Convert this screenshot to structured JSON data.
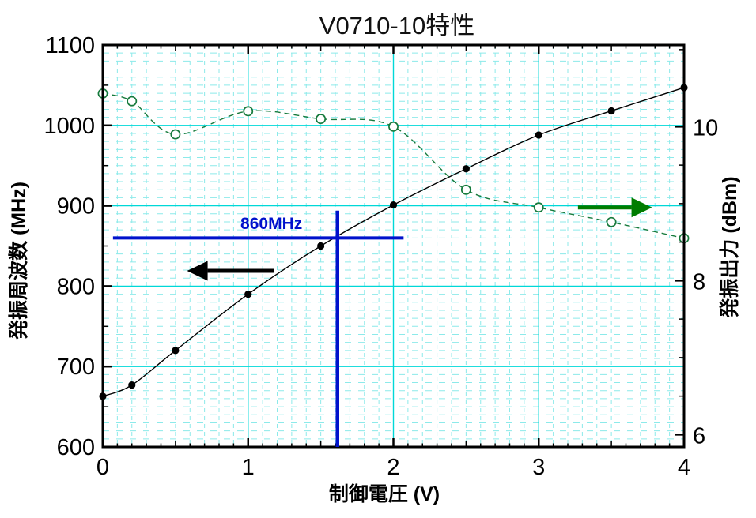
{
  "title": "V0710-10特性",
  "chart_data": {
    "type": "line",
    "title": "V0710-10特性",
    "xlabel": "制御電圧 (V)",
    "xlim": [
      0,
      4
    ],
    "x": [
      0,
      0.2,
      0.5,
      1.0,
      1.5,
      2.0,
      2.5,
      3.0,
      3.5,
      4.0
    ],
    "x_major_ticks": [
      0,
      1,
      2,
      3,
      4
    ],
    "left_axis": {
      "label": "発振周波数 (MHz)",
      "ylim": [
        600,
        1100
      ],
      "ticks": [
        600,
        700,
        800,
        900,
        1000,
        1100
      ],
      "minor_step": 50,
      "tick_color": "#000000"
    },
    "right_axis": {
      "label": "発振出力 (dBm)",
      "ylim": [
        5.84,
        11.06
      ],
      "ticks": [
        6,
        8,
        10
      ],
      "minor_step": 0.5,
      "tick_color": "#0e8c0e"
    },
    "grid": {
      "major_color": "#00d8d8",
      "minor_color": "#8ceaea",
      "x_minor_step": 0.1,
      "y_minor_step_mhz": 10
    },
    "series": [
      {
        "name": "発振周波数",
        "axis": "left",
        "marker": "filled-circle",
        "line_style": "solid",
        "color": "#000000",
        "values": [
          663,
          677,
          720,
          790,
          850,
          901,
          946,
          988,
          1018,
          1047
        ]
      },
      {
        "name": "発振出力",
        "axis": "right",
        "marker": "open-circle",
        "line_style": "dashed",
        "color": "#167a3c",
        "values": [
          10.43,
          10.33,
          9.9,
          10.2,
          10.1,
          10.0,
          9.18,
          8.95,
          8.76,
          8.55
        ]
      }
    ],
    "annotations": {
      "marker_label": {
        "text": "860MHz",
        "color": "#0012cc",
        "x_v": 1.16,
        "y_mhz": 871
      },
      "hline": {
        "y_mhz": 860,
        "from_v": 0.07,
        "to_v": 2.07,
        "color": "#0012cc",
        "width": 4
      },
      "vline": {
        "x_v": 1.615,
        "from_mhz": 894,
        "to_mhz": 600,
        "color": "#0012cc",
        "width": 4.5
      },
      "left_axis_arrow": {
        "axis": "left",
        "y_mhz": 819,
        "tail_v": 1.18,
        "tip_v": 0.58,
        "color": "#000000"
      },
      "right_axis_arrow": {
        "axis": "right",
        "y_dbm": 8.95,
        "tail_v": 3.27,
        "tip_v": 3.78,
        "color": "#007d00"
      }
    }
  }
}
